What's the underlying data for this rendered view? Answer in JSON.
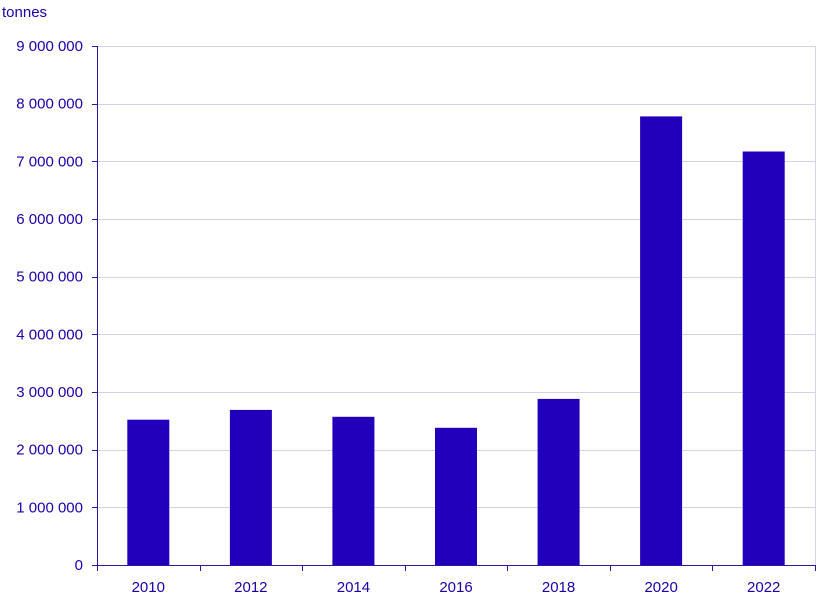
{
  "chart_data": {
    "type": "bar",
    "title": "",
    "ylabel": "tonnes",
    "xlabel": "",
    "categories": [
      "2010",
      "2012",
      "2014",
      "2016",
      "2018",
      "2020",
      "2022"
    ],
    "values": [
      2520000,
      2690000,
      2570000,
      2380000,
      2880000,
      7780000,
      7170000
    ],
    "ylim": [
      0,
      9000000
    ],
    "yticks": [
      0,
      1000000,
      2000000,
      3000000,
      4000000,
      5000000,
      6000000,
      7000000,
      8000000,
      9000000
    ],
    "ytick_labels": [
      "0",
      "1 000 000",
      "2 000 000",
      "3 000 000",
      "4 000 000",
      "5 000 000",
      "6 000 000",
      "7 000 000",
      "8 000 000",
      "9 000 000"
    ],
    "grid": true,
    "colors": {
      "bar": "#2200bb",
      "text": "#1a00a8",
      "grid": "#d6d2ec",
      "axis": "#2a1aa0"
    }
  }
}
